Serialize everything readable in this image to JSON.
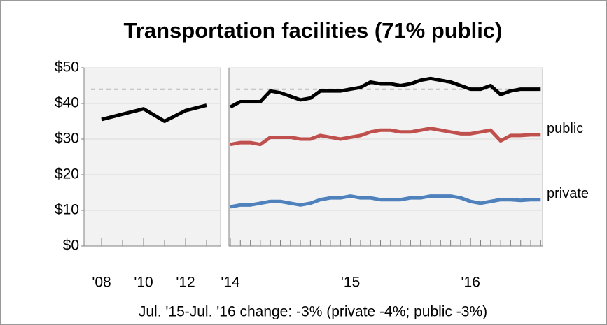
{
  "chart_data": [
    {
      "type": "line",
      "title": "Transportation facilities (71% public)",
      "categories": [
        "'08",
        null,
        "'10",
        null,
        "'12",
        null
      ],
      "series": [
        {
          "color": "#000000",
          "values": [
            35.5,
            37,
            38.5,
            35,
            38,
            39.5
          ]
        }
      ],
      "ylim": [
        0,
        50
      ],
      "yticks": [
        {
          "value": 0,
          "label": "$0"
        },
        {
          "value": 10,
          "label": "$10"
        },
        {
          "value": 20,
          "label": "$20"
        },
        {
          "value": 30,
          "label": "$30"
        },
        {
          "value": 40,
          "label": "$40"
        },
        {
          "value": 50,
          "label": "$50"
        }
      ],
      "reference_line": 44,
      "grid": true
    },
    {
      "type": "line",
      "categories": [
        "'14",
        null,
        null,
        null,
        null,
        null,
        null,
        null,
        null,
        null,
        null,
        null,
        "'15",
        null,
        null,
        null,
        null,
        null,
        null,
        null,
        null,
        null,
        null,
        null,
        "'16",
        null,
        null,
        null,
        null,
        null,
        null,
        null
      ],
      "series": [
        {
          "color": "#000000",
          "values": [
            39,
            40.5,
            40.5,
            40.5,
            43.5,
            43,
            42,
            41,
            41.5,
            43.5,
            43.5,
            43.5,
            44,
            44.5,
            46,
            45.5,
            45.5,
            45,
            45.5,
            46.5,
            47,
            46.5,
            46,
            45,
            44,
            44,
            45,
            42.5,
            43.5,
            44,
            44,
            44
          ]
        },
        {
          "name": "public",
          "color": "#c0504d",
          "values": [
            28.5,
            29,
            29,
            28.5,
            30.5,
            30.5,
            30.5,
            30,
            30,
            31,
            30.5,
            30,
            30.5,
            31,
            32,
            32.5,
            32.5,
            32,
            32,
            32.5,
            33,
            32.5,
            32,
            31.5,
            31.5,
            32,
            32.5,
            29.5,
            31,
            31,
            31.2,
            31.2
          ]
        },
        {
          "name": "private",
          "color": "#4f81bd",
          "values": [
            11,
            11.5,
            11.5,
            12,
            12.5,
            12.5,
            12,
            11.5,
            12,
            13,
            13.5,
            13.5,
            14,
            13.5,
            13.5,
            13,
            13,
            13,
            13.5,
            13.5,
            14,
            14,
            14,
            13.5,
            12.5,
            12,
            12.5,
            13,
            13,
            12.8,
            13,
            13
          ]
        }
      ],
      "ylim": [
        0,
        50
      ],
      "yticks": [
        0,
        10,
        20,
        30,
        40,
        50
      ],
      "reference_line": 44,
      "grid": true,
      "annotation": "Jul. '15-Jul. '16 change: -3% (private -4%; public -3%)"
    }
  ]
}
